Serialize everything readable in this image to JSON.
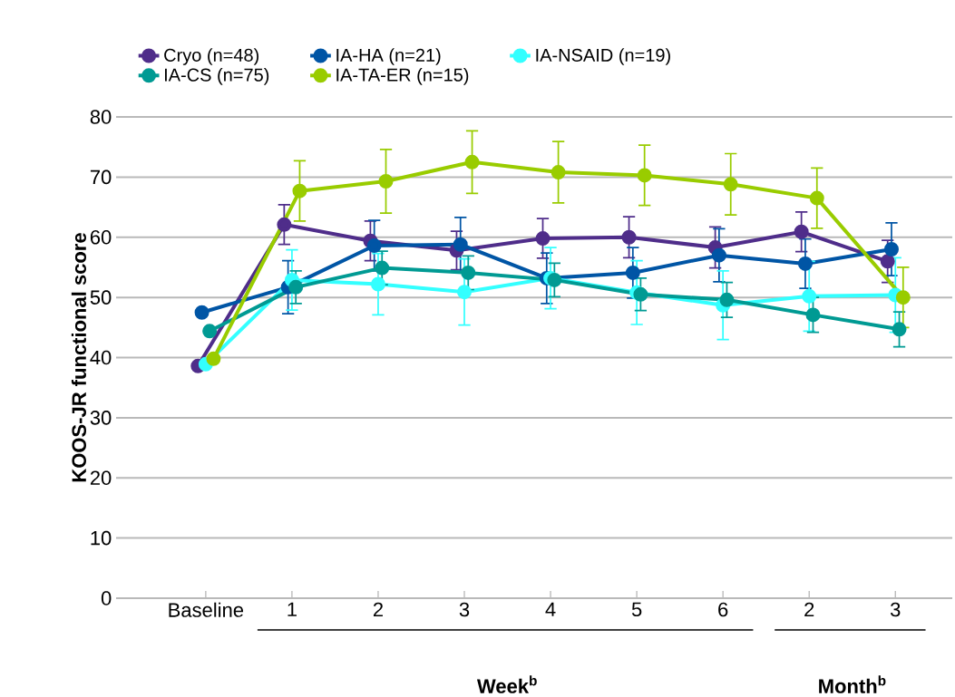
{
  "chart_data": {
    "type": "line",
    "ylabel": "KOOS-JR functional score",
    "categories": [
      "Baseline",
      "1",
      "2",
      "3",
      "4",
      "5",
      "6",
      "2",
      "3"
    ],
    "annotations": [
      "Week$^{b}$",
      "Month$^{b}$"
    ],
    "ylim": [
      0,
      80
    ],
    "yticks": [
      0,
      10,
      20,
      30,
      40,
      50,
      60,
      70,
      80
    ],
    "grid": "y",
    "legend": "top",
    "marker": "circle",
    "line_style": "solid",
    "series": [
      {
        "name": "Cryo (n=48)",
        "color": "#4f2d8a",
        "values": [
          38.6,
          62.1,
          59.4,
          57.8,
          59.8,
          60.0,
          58.3,
          60.9,
          56.0
        ],
        "errors": [
          null,
          3.3,
          3.3,
          3.2,
          3.3,
          3.4,
          3.4,
          3.3,
          3.5
        ]
      },
      {
        "name": "IA-HA (n=21)",
        "color": "#0055a5",
        "values": [
          47.5,
          51.7,
          58.6,
          58.8,
          53.2,
          54.1,
          57.0,
          55.6,
          58.0
        ],
        "errors": [
          null,
          4.4,
          4.2,
          4.5,
          4.2,
          4.2,
          4.4,
          4.1,
          4.4
        ]
      },
      {
        "name": "IA-NSAID (n=19)",
        "color": "#33ffff",
        "values": [
          38.9,
          52.9,
          52.2,
          50.9,
          53.2,
          50.8,
          48.7,
          50.2,
          50.4
        ],
        "errors": [
          null,
          5.0,
          5.1,
          5.5,
          5.1,
          5.3,
          5.7,
          5.8,
          6.2
        ]
      },
      {
        "name": "IA-CS (n=75)",
        "color": "#009a93",
        "values": [
          44.4,
          51.7,
          54.9,
          54.1,
          52.9,
          50.5,
          49.6,
          47.1,
          44.7
        ],
        "errors": [
          null,
          2.7,
          2.8,
          2.8,
          2.8,
          2.7,
          2.9,
          2.9,
          2.9
        ]
      },
      {
        "name": "IA-TA-ER (n=15)",
        "color": "#99cc00",
        "values": [
          39.8,
          67.7,
          69.3,
          72.5,
          70.8,
          70.3,
          68.8,
          66.5,
          50.0
        ],
        "errors": [
          null,
          5.0,
          5.3,
          5.2,
          5.1,
          5.0,
          5.1,
          5.0,
          5.0
        ]
      }
    ]
  }
}
